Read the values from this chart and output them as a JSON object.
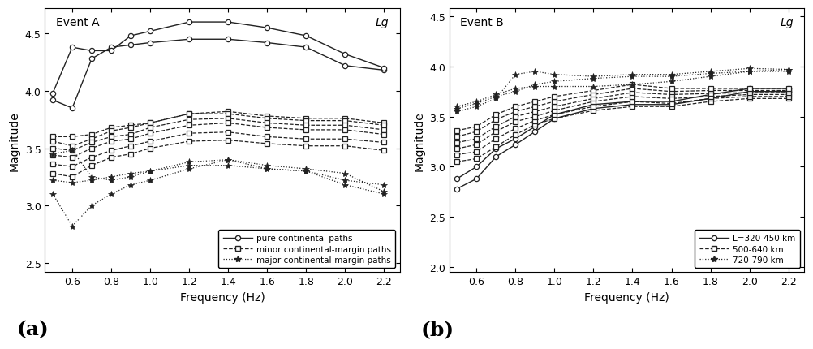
{
  "freq": [
    0.5,
    0.6,
    0.7,
    0.8,
    0.9,
    1.0,
    1.2,
    1.4,
    1.6,
    1.8,
    2.0,
    2.2
  ],
  "event_a": {
    "title": "Event A",
    "label_lg": "Lg",
    "ylabel": "Magnitude",
    "xlabel": "Frequency (Hz)",
    "xlim": [
      0.46,
      2.28
    ],
    "ylim": [
      2.42,
      4.72
    ],
    "yticks": [
      2.5,
      3.0,
      3.5,
      4.0,
      4.5
    ],
    "xticks": [
      0.6,
      0.8,
      1.0,
      1.2,
      1.4,
      1.6,
      1.8,
      2.0,
      2.2
    ],
    "panel_label": "(a)",
    "pure_continental": [
      [
        3.92,
        3.85,
        4.28,
        4.38,
        4.4,
        4.42,
        4.45,
        4.45,
        4.42,
        4.38,
        4.22,
        4.18
      ],
      [
        3.98,
        4.38,
        4.35,
        4.35,
        4.48,
        4.52,
        4.6,
        4.6,
        4.55,
        4.48,
        4.32,
        4.2
      ]
    ],
    "minor_margin": [
      [
        3.6,
        3.6,
        3.62,
        3.68,
        3.7,
        3.72,
        3.8,
        3.82,
        3.78,
        3.76,
        3.76,
        3.72
      ],
      [
        3.56,
        3.52,
        3.58,
        3.65,
        3.68,
        3.72,
        3.8,
        3.8,
        3.76,
        3.74,
        3.74,
        3.7
      ],
      [
        3.5,
        3.48,
        3.55,
        3.6,
        3.62,
        3.68,
        3.75,
        3.76,
        3.72,
        3.7,
        3.7,
        3.66
      ],
      [
        3.44,
        3.42,
        3.5,
        3.56,
        3.58,
        3.63,
        3.7,
        3.72,
        3.68,
        3.66,
        3.66,
        3.62
      ],
      [
        3.36,
        3.34,
        3.42,
        3.48,
        3.52,
        3.56,
        3.63,
        3.64,
        3.6,
        3.58,
        3.58,
        3.55
      ],
      [
        3.28,
        3.25,
        3.35,
        3.42,
        3.45,
        3.5,
        3.56,
        3.57,
        3.54,
        3.52,
        3.52,
        3.48
      ]
    ],
    "major_margin": [
      [
        3.45,
        3.48,
        3.25,
        3.22,
        3.25,
        3.3,
        3.38,
        3.4,
        3.35,
        3.32,
        3.28,
        3.12
      ],
      [
        3.22,
        3.2,
        3.22,
        3.25,
        3.28,
        3.3,
        3.35,
        3.35,
        3.32,
        3.3,
        3.22,
        3.18
      ],
      [
        3.1,
        2.82,
        3.0,
        3.1,
        3.18,
        3.22,
        3.32,
        3.4,
        3.32,
        3.3,
        3.18,
        3.1
      ]
    ]
  },
  "event_b": {
    "title": "Event B",
    "label_lg": "Lg",
    "ylabel": "Magnitude",
    "xlabel": "Frequency (Hz)",
    "xlim": [
      0.46,
      2.28
    ],
    "ylim": [
      1.95,
      4.58
    ],
    "yticks": [
      2.0,
      2.5,
      3.0,
      3.5,
      4.0,
      4.5
    ],
    "xticks": [
      0.6,
      0.8,
      1.0,
      1.2,
      1.4,
      1.6,
      1.8,
      2.0,
      2.2
    ],
    "panel_label": "(b)",
    "pure_continental": [
      [
        2.78,
        2.88,
        3.1,
        3.22,
        3.35,
        3.48,
        3.58,
        3.62,
        3.62,
        3.68,
        3.75,
        3.75
      ],
      [
        2.88,
        3.0,
        3.18,
        3.28,
        3.4,
        3.52,
        3.62,
        3.65,
        3.65,
        3.72,
        3.78,
        3.78
      ]
    ],
    "medium_margin": [
      [
        3.05,
        3.08,
        3.2,
        3.32,
        3.42,
        3.48,
        3.56,
        3.6,
        3.6,
        3.65,
        3.68,
        3.68
      ],
      [
        3.12,
        3.15,
        3.28,
        3.38,
        3.46,
        3.52,
        3.6,
        3.65,
        3.63,
        3.68,
        3.7,
        3.7
      ],
      [
        3.18,
        3.22,
        3.35,
        3.45,
        3.5,
        3.56,
        3.65,
        3.7,
        3.68,
        3.7,
        3.72,
        3.72
      ],
      [
        3.24,
        3.28,
        3.4,
        3.5,
        3.55,
        3.6,
        3.68,
        3.74,
        3.72,
        3.73,
        3.74,
        3.74
      ],
      [
        3.3,
        3.35,
        3.47,
        3.55,
        3.6,
        3.65,
        3.72,
        3.78,
        3.75,
        3.76,
        3.76,
        3.76
      ],
      [
        3.36,
        3.4,
        3.52,
        3.6,
        3.65,
        3.7,
        3.76,
        3.82,
        3.78,
        3.78,
        3.78,
        3.78
      ]
    ],
    "long_range": [
      [
        3.6,
        3.65,
        3.72,
        3.78,
        3.8,
        3.8,
        3.8,
        3.82,
        3.85,
        3.9,
        3.95,
        3.97
      ],
      [
        3.58,
        3.63,
        3.7,
        3.75,
        3.82,
        3.85,
        3.88,
        3.9,
        3.9,
        3.93,
        3.95,
        3.95
      ],
      [
        3.55,
        3.6,
        3.68,
        3.92,
        3.95,
        3.92,
        3.9,
        3.92,
        3.92,
        3.95,
        3.98,
        3.97
      ]
    ]
  }
}
